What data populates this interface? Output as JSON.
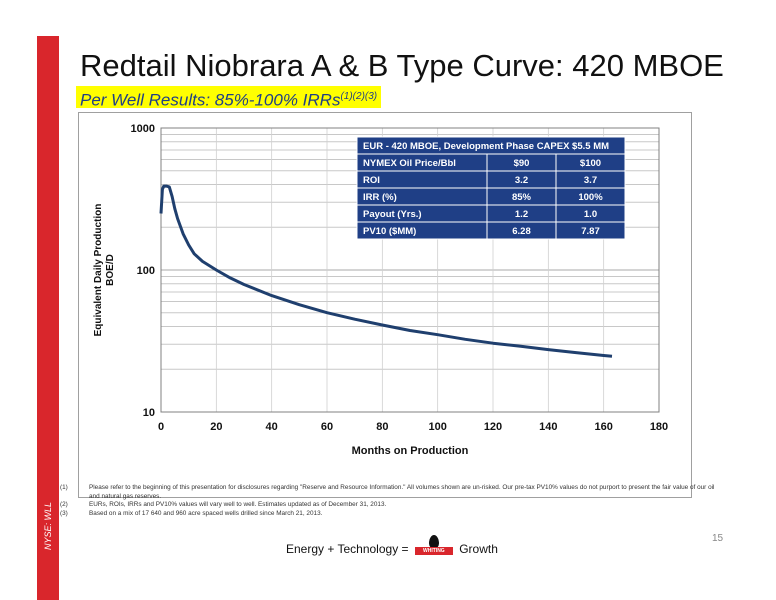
{
  "slide": {
    "title": "Redtail Niobrara A & B Type Curve: 420 MBOE",
    "subtitle_main": "Per Well Results: 85%-100% IRRs",
    "subtitle_sup": "(1)(2)(3)",
    "ticker": "NYSE: WLL",
    "page_number": "15",
    "footer_left": "Energy + Technology = ",
    "footer_logo": "WHITING",
    "footer_right": " Growth",
    "accent_color": "#d9262c",
    "curve_color": "#1f3f6e"
  },
  "notes": [
    {
      "num": "(1)",
      "text": "Please refer to the beginning of this presentation for disclosures regarding \"Reserve and Resource Information.\"   All volumes shown are un-risked.  Our pre-tax PV10% values do not purport to present the fair value of our oil and natural gas reserves."
    },
    {
      "num": "(2)",
      "text": "EURs, ROIs, IRRs and PV10% values will vary well to well.  Estimates updated as of December 31, 2013."
    },
    {
      "num": "(3)",
      "text": "Based on a mix of 17 640 and 960 acre spaced wells drilled since March 21, 2013."
    }
  ],
  "chart_data": {
    "type": "line",
    "title": "",
    "xlabel": "Months on Production",
    "ylabel": "Equivalent Daily Production BOE/D",
    "ylabel_line1": "Equivalent Daily Production",
    "ylabel_line2": "BOE/D",
    "y_scale": "log",
    "xlim": [
      0,
      180
    ],
    "ylim": [
      10,
      1000
    ],
    "x_ticks": [
      "0",
      "20",
      "40",
      "60",
      "80",
      "100",
      "120",
      "140",
      "160",
      "180"
    ],
    "y_ticks": [
      "10",
      "100",
      "1000"
    ],
    "grid": true,
    "legend": "none",
    "series": [
      {
        "x": [
          0,
          0.5,
          1,
          2,
          3,
          4,
          5,
          6,
          8,
          10,
          12,
          15,
          20,
          25,
          30,
          40,
          50,
          60,
          70,
          80,
          90,
          100,
          110,
          120,
          130,
          140,
          150,
          160,
          163
        ],
        "y": [
          250,
          370,
          390,
          390,
          385,
          330,
          270,
          230,
          180,
          150,
          130,
          115,
          100,
          88,
          79,
          66,
          57,
          50,
          45,
          41,
          37.5,
          35,
          32.5,
          30.5,
          29,
          27.5,
          26.2,
          25,
          24.7
        ]
      }
    ],
    "table": {
      "header": "EUR - 420 MBOE, Development Phase CAPEX $5.5 MM",
      "columns": [
        "NYMEX Oil Price/Bbl",
        "$90",
        "$100"
      ],
      "rows": [
        [
          "ROI",
          "3.2",
          "3.7"
        ],
        [
          "IRR (%)",
          "85%",
          "100%"
        ],
        [
          "Payout (Yrs.)",
          "1.2",
          "1.0"
        ],
        [
          "PV10 ($MM)",
          "6.28",
          "7.87"
        ]
      ]
    }
  }
}
